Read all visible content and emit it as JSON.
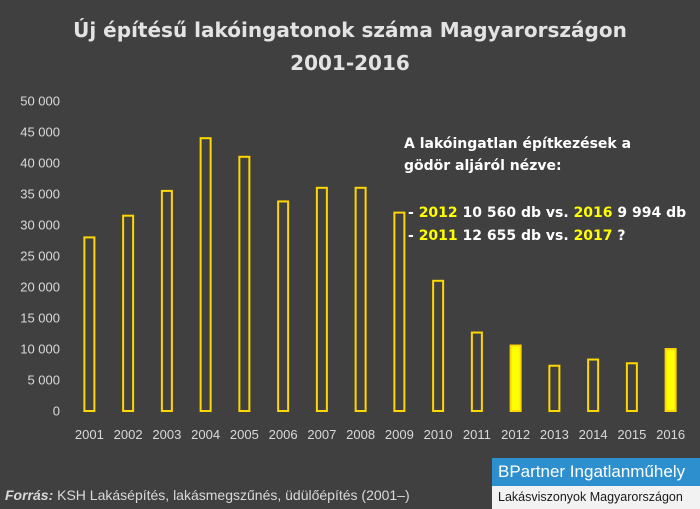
{
  "chart_data": {
    "type": "bar",
    "title": "Új építésű lakóingatonok száma Magyarországon",
    "subtitle": "2001-2016",
    "categories": [
      "2001",
      "2002",
      "2003",
      "2004",
      "2005",
      "2006",
      "2007",
      "2008",
      "2009",
      "2010",
      "2011",
      "2012",
      "2013",
      "2014",
      "2015",
      "2016"
    ],
    "values": [
      28000,
      31500,
      35500,
      44000,
      41000,
      33800,
      36000,
      36000,
      32000,
      21000,
      12655,
      10560,
      7300,
      8300,
      7700,
      9994
    ],
    "highlighted_categories": [
      "2012",
      "2016"
    ],
    "ylim": [
      0,
      50000
    ],
    "yticks": [
      0,
      5000,
      10000,
      15000,
      20000,
      25000,
      30000,
      35000,
      40000,
      45000,
      50000
    ],
    "ytick_labels": [
      "0",
      "5 000",
      "10 000",
      "15 000",
      "20 000",
      "25 000",
      "30 000",
      "35 000",
      "40 000",
      "45 000",
      "50 000"
    ],
    "grid": false,
    "xlabel": "",
    "ylabel": "",
    "colors": {
      "background": "#404040",
      "bar_outline": "#ffd700",
      "bar_highlight_fill": "#ffff00",
      "text": "#d9d9d9",
      "title": "#e3e3e3"
    },
    "annotation": {
      "heading_line1": "A lakóingatlan építkezések a",
      "heading_line2": "gödör aljáról nézve:",
      "line1": {
        "prefix": "- ",
        "year_a": "2012",
        "value_a": " 10 560 db vs. ",
        "year_b": "2016",
        "value_b": " 9 994 db"
      },
      "line2": {
        "prefix": "- ",
        "year_a": "2011",
        "value_a": " 12 655 db vs. ",
        "year_b": "2017",
        "value_b": " ?"
      }
    }
  },
  "footer": {
    "source_label": "Forrás:",
    "source_text": " KSH Lakásépítés, lakásmegszűnés, üdülőépítés (2001–)"
  },
  "brand": {
    "name": "BPartner Ingatlanműhely",
    "tagline": "Lakásviszonyok Magyarországon"
  }
}
